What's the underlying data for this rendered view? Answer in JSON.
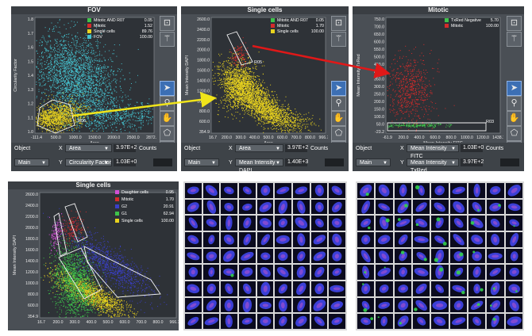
{
  "panels": [
    {
      "title": "FOV",
      "legend": [
        {
          "name": "Mitotic AND R07",
          "value": "0.05",
          "color": "#3ec34b"
        },
        {
          "name": "Mitotic",
          "value": "1.52",
          "color": "#d42b2b"
        },
        {
          "name": "Single cells",
          "value": "89.76",
          "color": "#e8d21e"
        },
        {
          "name": "FOV",
          "value": "100.00",
          "color": "#45c2cf"
        }
      ],
      "yticks": [
        "1.8",
        "1.7",
        "1.6",
        "1.5",
        "1.4",
        "1.3",
        "1.2",
        "1.1",
        "1.0"
      ],
      "xticks": [
        "-111.4",
        "500.0",
        "1000.0",
        "1500.0",
        "2000.0",
        "2500.0",
        "2872.7"
      ],
      "ylabel": "Circularity Factor",
      "xlabel": "Area",
      "region": "R06",
      "controls": {
        "object_label": "Object",
        "object_value": "Main",
        "x_label": "X",
        "x_value": "Area",
        "x_num": "3.97E+2",
        "y_label": "Y",
        "y_value": "Circularity Factor",
        "y_num": "1.03E+0",
        "counts_label": "Counts"
      }
    },
    {
      "title": "Single cells",
      "legend": [
        {
          "name": "Mitotic AND R07",
          "value": "0.05",
          "color": "#3ec34b"
        },
        {
          "name": "Mitotic",
          "value": "1.70",
          "color": "#d42b2b"
        },
        {
          "name": "Single cells",
          "value": "100.00",
          "color": "#e8d21e"
        }
      ],
      "yticks": [
        "2600.0",
        "2400.0",
        "2200.0",
        "2000.0",
        "1800.0",
        "1600.0",
        "1400.0",
        "1200.0",
        "1000.0",
        "800.0",
        "600.0",
        "354.9"
      ],
      "xticks": [
        "16.7",
        "200.0",
        "300.0",
        "400.0",
        "500.0",
        "600.0",
        "700.0",
        "800.0",
        "966.7"
      ],
      "ylabel": "Mean Intensity DAPI",
      "xlabel": "Area",
      "region": "R05",
      "controls": {
        "object_label": "Object",
        "object_value": "Main",
        "x_label": "X",
        "x_value": "Area",
        "x_num": "3.97E+2",
        "y_label": "Y",
        "y_value": "Mean Intensity DAPI",
        "y_num": "1.40E+3",
        "counts_label": "Counts"
      }
    },
    {
      "title": "Mitotic",
      "legend": [
        {
          "name": "TxRed Negative",
          "value": "5.70",
          "color": "#3ec34b"
        },
        {
          "name": "Mitotic",
          "value": "100.00",
          "color": "#d42b2b"
        }
      ],
      "yticks": [
        "750.0",
        "700.0",
        "650.0",
        "600.0",
        "550.0",
        "500.0",
        "450.0",
        "400.0",
        "350.0",
        "300.0",
        "250.0",
        "200.0",
        "150.0",
        "100.0",
        "50.0",
        "-23.2"
      ],
      "xticks": [
        "-61.9",
        "200.0",
        "400.0",
        "600.0",
        "800.0",
        "1000.0",
        "1200.0",
        "1438.1"
      ],
      "ylabel": "Mean Intensity TxRed",
      "xlabel": "Mean Intensity FITC",
      "region": "R03",
      "controls": {
        "object_label": "Object",
        "object_value": "Main",
        "x_label": "X",
        "x_value": "Mean Intensity FITC",
        "x_num": "1.03E+0",
        "y_label": "Y",
        "y_value": "Mean Intensity TxRed",
        "y_num": "3.97E+2",
        "counts_label": "Counts"
      }
    },
    {
      "title": "Single cells",
      "legend": [
        {
          "name": "Daughter cells",
          "value": "0.95",
          "color": "#d24fd6"
        },
        {
          "name": "Mitotic",
          "value": "1.70",
          "color": "#d42b2b"
        },
        {
          "name": "G2",
          "value": "20.91",
          "color": "#3a3fc8"
        },
        {
          "name": "G1",
          "value": "62.94",
          "color": "#3ec34b"
        },
        {
          "name": "Single cells",
          "value": "100.00",
          "color": "#e8d21e"
        }
      ],
      "yticks": [
        "2600.0",
        "2400.0",
        "2200.0",
        "2000.0",
        "1800.0",
        "1600.0",
        "1400.0",
        "1200.0",
        "1000.0",
        "800.0",
        "600.0",
        "354.9"
      ],
      "xticks": [
        "16.7",
        "200.0",
        "300.0",
        "400.0",
        "500.0",
        "600.0",
        "700.0",
        "800.0",
        "966.7"
      ],
      "ylabel": "Mean Intensity DAPI",
      "xlabel": ""
    }
  ],
  "tool_icons": [
    "fit-view-icon",
    "magic-wand-icon",
    "pointer-icon",
    "zoom-icon",
    "pan-hand-icon",
    "gate-icon",
    "square-icon"
  ],
  "colors": {
    "panel_bg": "#4a4f55",
    "plot_bg": "#2e3237",
    "cyan": "#45c2cf",
    "yellow": "#e8d21e",
    "red": "#d42b2b",
    "green": "#3ec34b",
    "blue": "#3a3fc8",
    "magenta": "#d24fd6",
    "arrow_red": "#e01818",
    "arrow_yellow": "#f0e41a"
  }
}
